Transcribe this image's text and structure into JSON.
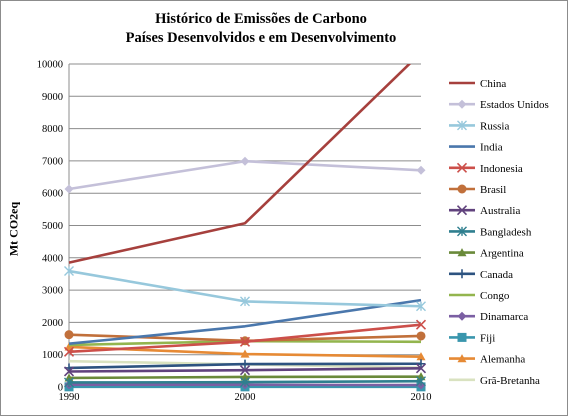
{
  "colors": {
    "China": "#a6403d",
    "Estados Unidos": "#c4c0d9",
    "Russia": "#97c8dc",
    "India": "#4a77ac",
    "Indonesia": "#cc4f4a",
    "Brasil": "#c1703b",
    "Australia": "#60427d",
    "Bangladesh": "#2f7f8f",
    "Argentina": "#6a8a3a",
    "Canada": "#2d5380",
    "Congo": "#93b54e",
    "Dinamarca": "#7b5fa3",
    "Fiji": "#3a96ad",
    "Alemanha": "#e68a35",
    "Grã-Bretanha": "#d9e2c0"
  },
  "chart_data": {
    "type": "line",
    "title": "Histórico  de Emissões de Carbono",
    "subtitle": "Países Desenvolvidos e em Desenvolvimento",
    "xlabel": "",
    "ylabel": "Mt CO2eq",
    "x": [
      "1990",
      "2000",
      "2010"
    ],
    "ylim": [
      0,
      10000
    ],
    "yticks": [
      "0",
      "1000",
      "2000",
      "3000",
      "4000",
      "5000",
      "6000",
      "7000",
      "8000",
      "9000",
      "10000"
    ],
    "grid": true,
    "legend": "right",
    "series": [
      {
        "name": "China",
        "values": [
          3850,
          5070,
          10350
        ]
      },
      {
        "name": "Estados Unidos",
        "values": [
          6130,
          6990,
          6710
        ]
      },
      {
        "name": "Russia",
        "values": [
          3590,
          2650,
          2500
        ]
      },
      {
        "name": "India",
        "values": [
          1340,
          1880,
          2690
        ]
      },
      {
        "name": "Indonesia",
        "values": [
          1090,
          1400,
          1930
        ]
      },
      {
        "name": "Brasil",
        "values": [
          1620,
          1430,
          1580
        ]
      },
      {
        "name": "Australia",
        "values": [
          480,
          520,
          580
        ]
      },
      {
        "name": "Bangladesh",
        "values": [
          140,
          150,
          180
        ]
      },
      {
        "name": "Argentina",
        "values": [
          280,
          310,
          320
        ]
      },
      {
        "name": "Canada",
        "values": [
          590,
          710,
          720
        ]
      },
      {
        "name": "Congo",
        "values": [
          1300,
          1420,
          1400
        ]
      },
      {
        "name": "Dinamarca",
        "values": [
          70,
          70,
          60
        ]
      },
      {
        "name": "Fiji",
        "values": [
          5,
          5,
          5
        ]
      },
      {
        "name": "Alemanha",
        "values": [
          1240,
          1020,
          940
        ]
      },
      {
        "name": "Grã-Bretanha",
        "values": [
          800,
          700,
          600
        ]
      }
    ]
  }
}
